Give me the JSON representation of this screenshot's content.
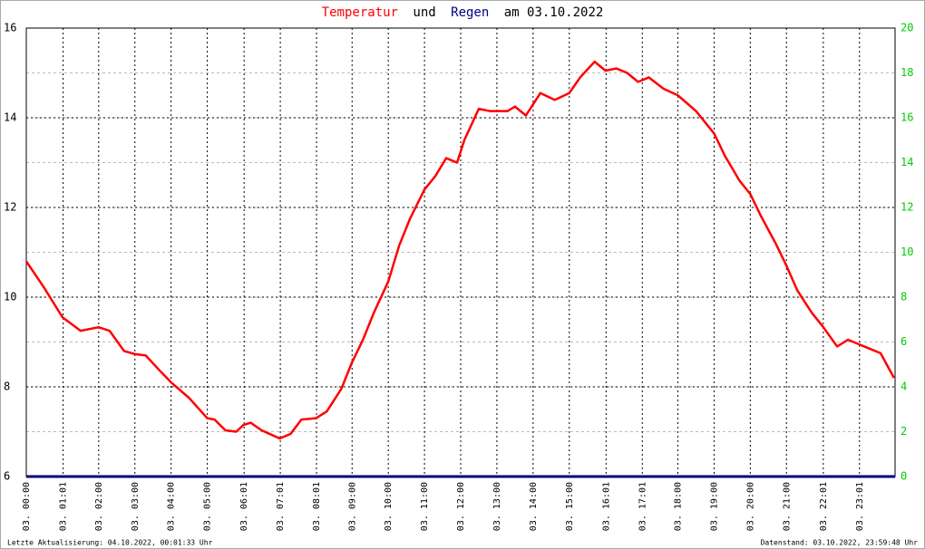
{
  "chart_data": {
    "type": "line",
    "title_parts": [
      "Temperatur",
      "und",
      "Regen",
      "am 03.10.2022"
    ],
    "footer_left": "Letzte Aktualisierung: 04.10.2022, 00:01:33 Uhr",
    "footer_right": "Datenstand: 03.10.2022, 23:59:48 Uhr",
    "xlim": [
      0,
      24
    ],
    "xticks": [
      {
        "value": 0,
        "label": "03. 00:00"
      },
      {
        "value": 1.017,
        "label": "03. 01:01"
      },
      {
        "value": 2,
        "label": "03. 02:00"
      },
      {
        "value": 3,
        "label": "03. 03:00"
      },
      {
        "value": 4,
        "label": "03. 04:00"
      },
      {
        "value": 5,
        "label": "03. 05:00"
      },
      {
        "value": 6.017,
        "label": "03. 06:01"
      },
      {
        "value": 7.017,
        "label": "03. 07:01"
      },
      {
        "value": 8.017,
        "label": "03. 08:01"
      },
      {
        "value": 9,
        "label": "03. 09:00"
      },
      {
        "value": 10,
        "label": "03. 10:00"
      },
      {
        "value": 11,
        "label": "03. 11:00"
      },
      {
        "value": 12,
        "label": "03. 12:00"
      },
      {
        "value": 13,
        "label": "03. 13:00"
      },
      {
        "value": 14,
        "label": "03. 14:00"
      },
      {
        "value": 15,
        "label": "03. 15:00"
      },
      {
        "value": 16.017,
        "label": "03. 16:01"
      },
      {
        "value": 17.017,
        "label": "03. 17:01"
      },
      {
        "value": 18,
        "label": "03. 18:00"
      },
      {
        "value": 19,
        "label": "03. 19:00"
      },
      {
        "value": 20,
        "label": "03. 20:00"
      },
      {
        "value": 21,
        "label": "03. 21:00"
      },
      {
        "value": 22.017,
        "label": "03. 22:01"
      },
      {
        "value": 23.017,
        "label": "03. 23:01"
      }
    ],
    "ylim": [
      6,
      16
    ],
    "yticks": [
      6,
      8,
      10,
      12,
      14,
      16
    ],
    "y2lim": [
      0,
      20
    ],
    "y2ticks": [
      0,
      2,
      4,
      6,
      8,
      10,
      12,
      14,
      16,
      18,
      20
    ],
    "y2color": "#00cc00",
    "grid": true,
    "series": [
      {
        "name": "Temperatur",
        "color": "#ff0000",
        "x": [
          0,
          0.5,
          1.0,
          1.5,
          2.0,
          2.3,
          2.7,
          3.0,
          3.3,
          3.7,
          4.0,
          4.5,
          5.0,
          5.2,
          5.5,
          5.8,
          6.0,
          6.2,
          6.5,
          7.0,
          7.3,
          7.6,
          8.0,
          8.3,
          8.7,
          9.0,
          9.3,
          9.6,
          10.0,
          10.3,
          10.6,
          11.0,
          11.3,
          11.6,
          11.9,
          12.1,
          12.5,
          12.8,
          13.3,
          13.5,
          13.8,
          14.2,
          14.6,
          15.0,
          15.3,
          15.7,
          16.0,
          16.3,
          16.6,
          16.9,
          17.2,
          17.6,
          18.0,
          18.5,
          19.0,
          19.3,
          19.7,
          20.0,
          20.3,
          20.7,
          21.0,
          21.3,
          21.7,
          22.0,
          22.4,
          22.7,
          23.0,
          23.3,
          23.6,
          23.97
        ],
        "values": [
          10.8,
          10.2,
          9.55,
          9.25,
          9.33,
          9.25,
          8.8,
          8.73,
          8.7,
          8.35,
          8.1,
          7.75,
          7.3,
          7.27,
          7.03,
          7.0,
          7.15,
          7.2,
          7.03,
          6.85,
          6.95,
          7.27,
          7.3,
          7.45,
          7.95,
          8.55,
          9.05,
          9.65,
          10.35,
          11.15,
          11.75,
          12.4,
          12.7,
          13.1,
          13.0,
          13.5,
          14.2,
          14.15,
          14.15,
          14.25,
          14.05,
          14.55,
          14.4,
          14.55,
          14.9,
          15.25,
          15.05,
          15.1,
          15.0,
          14.8,
          14.9,
          14.65,
          14.5,
          14.15,
          13.65,
          13.15,
          12.6,
          12.3,
          11.8,
          11.2,
          10.7,
          10.15,
          9.65,
          9.35,
          8.9,
          9.05,
          8.95,
          8.85,
          8.75,
          8.2
        ]
      },
      {
        "name": "Regen",
        "color": "#000080",
        "axis": "y2",
        "x": [
          0,
          24
        ],
        "values": [
          0,
          0
        ]
      }
    ]
  }
}
